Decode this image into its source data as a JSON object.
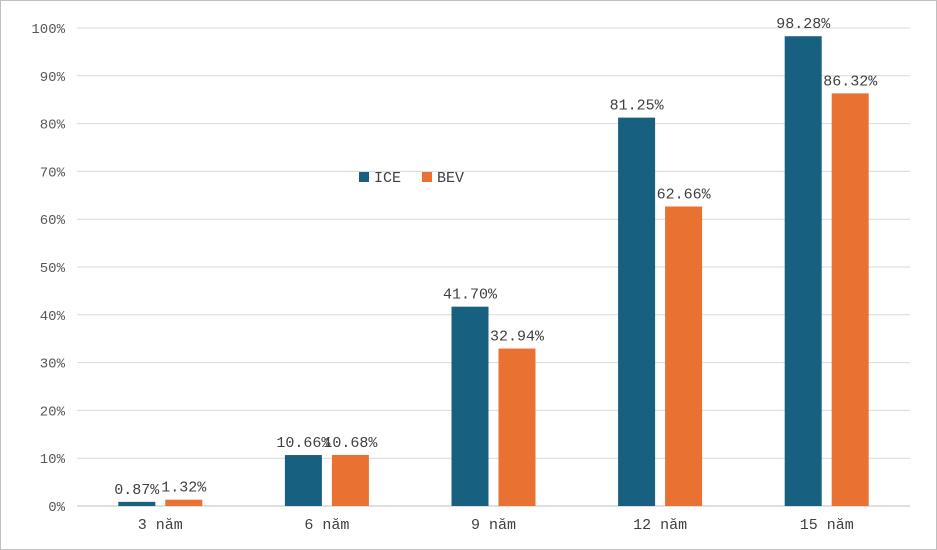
{
  "chart_data": {
    "type": "bar",
    "categories": [
      "3 năm",
      "6 năm",
      "9 năm",
      "12 năm",
      "15 năm"
    ],
    "series": [
      {
        "name": "ICE",
        "color": "#17607f",
        "values": [
          0.87,
          10.66,
          41.7,
          81.25,
          98.28
        ],
        "labels": [
          "0.87%",
          "10.66%",
          "41.70%",
          "81.25%",
          "98.28%"
        ]
      },
      {
        "name": "BEV",
        "color": "#e97132",
        "values": [
          1.32,
          10.68,
          32.94,
          62.66,
          86.32
        ],
        "labels": [
          "1.32%",
          "10.68%",
          "32.94%",
          "62.66%",
          "86.32%"
        ]
      }
    ],
    "ylim": [
      0,
      100
    ],
    "yticks": [
      0,
      10,
      20,
      30,
      40,
      50,
      60,
      70,
      80,
      90,
      100
    ],
    "ytick_labels": [
      "0%",
      "10%",
      "20%",
      "30%",
      "40%",
      "50%",
      "60%",
      "70%",
      "80%",
      "90%",
      "100%"
    ],
    "grid": true,
    "legend_position": "inside-top-left",
    "title": "",
    "xlabel": "",
    "ylabel": ""
  }
}
